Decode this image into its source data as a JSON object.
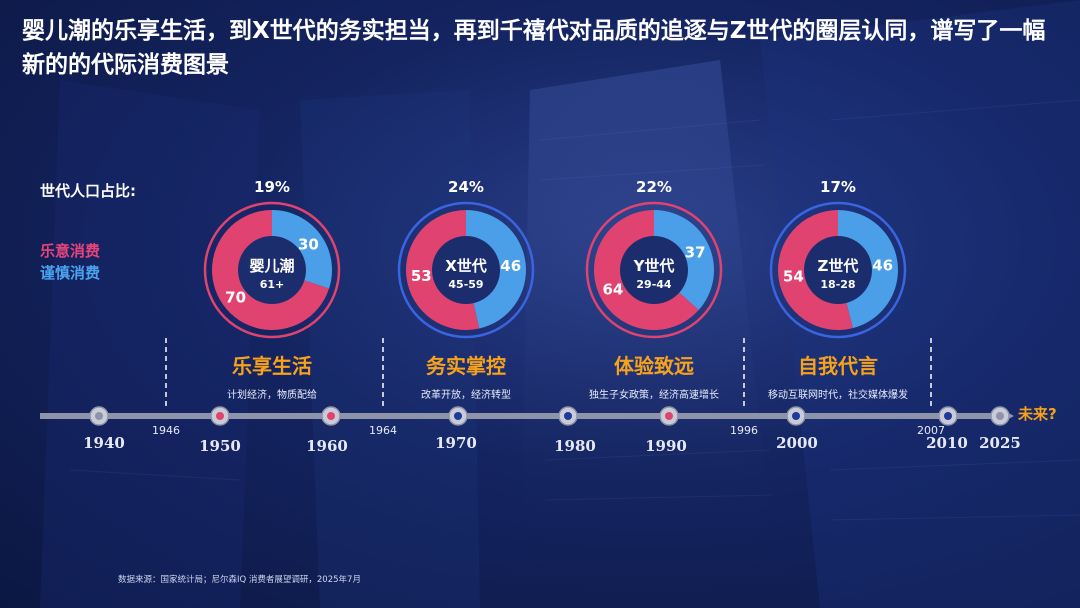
{
  "title": "婴儿潮的乐享生活，到X世代的务实担当，再到千禧代对品质的追逐与Z世代的圈层认同，谱写了一幅新的的代际消费图景",
  "share_label": "世代人口占比:",
  "legend": {
    "joy": "乐意消费",
    "care": "谨慎消费"
  },
  "colors": {
    "joy": "#e0436f",
    "care": "#4a9fe8",
    "accent": "#f7a21b"
  },
  "chart_data": {
    "type": "pie",
    "series_names": [
      "乐意消费",
      "谨慎消费"
    ],
    "generations": [
      {
        "name": "婴儿潮",
        "age": "61+",
        "share": "19%",
        "joy": 70,
        "care": 30,
        "ring": "pink",
        "slogan": "乐享生活",
        "desc": "计划经济，物质配给"
      },
      {
        "name": "X世代",
        "age": "45-59",
        "share": "24%",
        "joy": 53,
        "care": 46,
        "ring": "blue",
        "slogan": "务实掌控",
        "desc": "改革开放，经济转型"
      },
      {
        "name": "Y世代",
        "age": "29-44",
        "share": "22%",
        "joy": 64,
        "care": 37,
        "ring": "pink",
        "slogan": "体验致远",
        "desc": "独生子女政策，经济高速增长"
      },
      {
        "name": "Z世代",
        "age": "18-28",
        "share": "17%",
        "joy": 54,
        "care": 46,
        "ring": "blue",
        "slogan": "自我代言",
        "desc": "移动互联网时代，社交媒体爆发"
      }
    ],
    "timeline": {
      "years": [
        "1940",
        "1950",
        "1960",
        "1970",
        "1980",
        "1990",
        "2000",
        "2010",
        "2025"
      ],
      "dividers": [
        "1946",
        "1964",
        "1996",
        "2007"
      ],
      "future": "未来?"
    }
  },
  "source": "数据来源：国家统计局；尼尔森IQ 消费者展望调研，2025年7月"
}
